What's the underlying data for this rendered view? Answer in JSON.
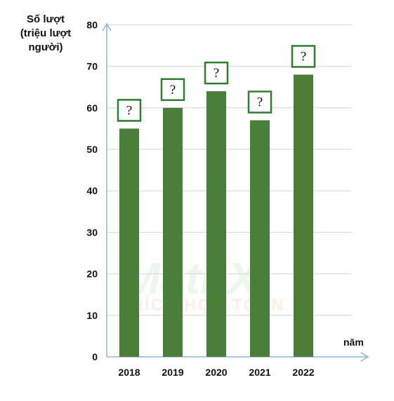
{
  "chart_data": {
    "type": "bar",
    "ylabel_lines": [
      "Số lượt",
      "(triệu lượt",
      "người)"
    ],
    "xlabel": "năm",
    "categories": [
      "2018",
      "2019",
      "2020",
      "2021",
      "2022"
    ],
    "values": [
      55,
      60,
      64,
      57,
      68
    ],
    "data_labels": [
      "?",
      "?",
      "?",
      "?",
      "?"
    ],
    "yticks": [
      "0",
      "10",
      "20",
      "30",
      "40",
      "50",
      "60",
      "70",
      "80"
    ],
    "ylim": [
      0,
      80
    ],
    "grid": true,
    "bar_color": "#4a7f3a",
    "label_box_color": "#2e7d32"
  },
  "watermark": {
    "brand": "MathX",
    "tagline": "THÍCH HỌC TOÁN"
  }
}
